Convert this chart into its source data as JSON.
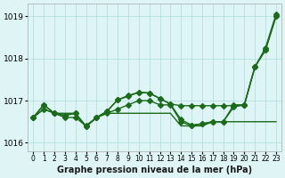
{
  "title": "Graphe pression niveau de la mer (hPa)",
  "xlabel_hours": [
    0,
    1,
    2,
    3,
    4,
    5,
    6,
    7,
    8,
    9,
    10,
    11,
    12,
    13,
    14,
    15,
    16,
    17,
    18,
    19,
    20,
    21,
    22,
    23
  ],
  "series": [
    [
      1016.6,
      1016.8,
      1016.7,
      1016.7,
      1016.7,
      1016.4,
      1016.6,
      1016.7,
      1016.7,
      1016.7,
      1016.7,
      1016.7,
      1016.7,
      1016.7,
      1016.4,
      1016.4,
      1016.4,
      1016.5,
      1016.5,
      1016.5,
      1016.5,
      1016.5,
      1016.5,
      1016.5
    ],
    [
      1016.6,
      1016.8,
      1016.7,
      1016.6,
      1016.6,
      1016.4,
      1016.6,
      1016.7,
      1016.8,
      1016.9,
      1017.0,
      1017.0,
      1016.9,
      1016.9,
      1016.5,
      1016.4,
      1016.45,
      1016.5,
      1016.5,
      1016.9,
      1016.9,
      1017.8,
      1018.2,
      1019.0
    ],
    [
      1016.6,
      1016.9,
      1016.7,
      1016.65,
      1016.7,
      1016.38,
      1016.6,
      1016.75,
      1017.02,
      1017.1,
      1017.2,
      1017.18,
      1017.05,
      1016.92,
      1016.88,
      1016.88,
      1016.88,
      1016.88,
      1016.88,
      1016.88,
      1016.9,
      1017.8,
      1018.2,
      1019.0
    ],
    [
      1016.6,
      1016.9,
      1016.7,
      1016.65,
      1016.7,
      1016.38,
      1016.6,
      1016.75,
      1017.02,
      1017.12,
      1017.2,
      1017.18,
      1017.05,
      1016.92,
      1016.55,
      1016.42,
      1016.45,
      1016.5,
      1016.5,
      1016.85,
      1016.9,
      1017.8,
      1018.25,
      1019.05
    ]
  ],
  "line_color": "#1a6b1a",
  "bg_color": "#dff4f4",
  "grid_color": "#aadddd",
  "ylim": [
    1015.8,
    1019.3
  ],
  "yticks": [
    1016,
    1017,
    1018,
    1019
  ],
  "title_fontsize": 9,
  "marker": "D",
  "marker_size": 3,
  "linewidth": 1.0
}
